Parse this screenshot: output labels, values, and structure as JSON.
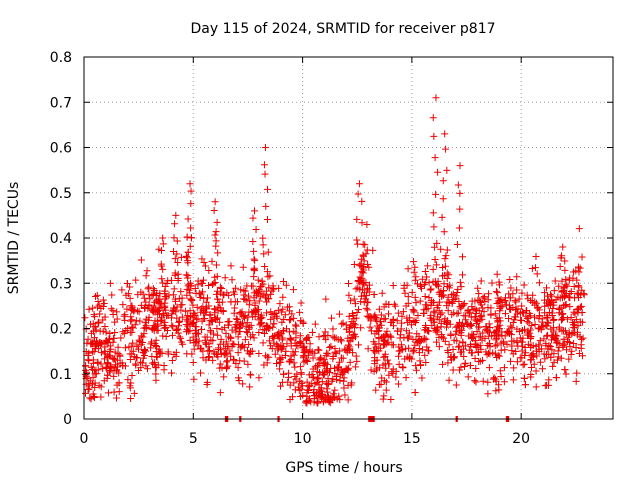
{
  "chart_data": {
    "type": "scatter",
    "title": "Day 115 of 2024, SRMTID for receiver p817",
    "xlabel": "GPS time / hours",
    "ylabel": "SRMTID / TECUs",
    "xlim": [
      0,
      24.2
    ],
    "ylim": [
      0,
      0.8
    ],
    "x_ticks": [
      0,
      5,
      10,
      15,
      20
    ],
    "y_ticks": [
      0,
      0.1,
      0.2,
      0.3,
      0.4,
      0.5,
      0.6,
      0.7,
      0.8
    ],
    "grid": true,
    "marker": "+",
    "color": "#ee0000",
    "trend": [
      {
        "x": 0.0,
        "y": 0.13
      },
      {
        "x": 0.5,
        "y": 0.15
      },
      {
        "x": 1.0,
        "y": 0.14
      },
      {
        "x": 1.5,
        "y": 0.16
      },
      {
        "x": 2.0,
        "y": 0.18
      },
      {
        "x": 2.5,
        "y": 0.19
      },
      {
        "x": 3.0,
        "y": 0.21
      },
      {
        "x": 3.5,
        "y": 0.2
      },
      {
        "x": 4.0,
        "y": 0.22
      },
      {
        "x": 4.5,
        "y": 0.24
      },
      {
        "x": 5.0,
        "y": 0.23
      },
      {
        "x": 5.5,
        "y": 0.21
      },
      {
        "x": 6.0,
        "y": 0.22
      },
      {
        "x": 6.5,
        "y": 0.19
      },
      {
        "x": 7.0,
        "y": 0.2
      },
      {
        "x": 7.5,
        "y": 0.21
      },
      {
        "x": 8.0,
        "y": 0.24
      },
      {
        "x": 8.5,
        "y": 0.23
      },
      {
        "x": 9.0,
        "y": 0.18
      },
      {
        "x": 9.5,
        "y": 0.15
      },
      {
        "x": 10.0,
        "y": 0.13
      },
      {
        "x": 10.5,
        "y": 0.1
      },
      {
        "x": 11.0,
        "y": 0.09
      },
      {
        "x": 11.5,
        "y": 0.1
      },
      {
        "x": 12.0,
        "y": 0.14
      },
      {
        "x": 12.5,
        "y": 0.24
      },
      {
        "x": 12.8,
        "y": 0.3
      },
      {
        "x": 13.2,
        "y": 0.2
      },
      {
        "x": 13.5,
        "y": 0.17
      },
      {
        "x": 14.0,
        "y": 0.16
      },
      {
        "x": 14.5,
        "y": 0.19
      },
      {
        "x": 15.0,
        "y": 0.21
      },
      {
        "x": 15.5,
        "y": 0.22
      },
      {
        "x": 16.0,
        "y": 0.26
      },
      {
        "x": 16.5,
        "y": 0.24
      },
      {
        "x": 17.0,
        "y": 0.2
      },
      {
        "x": 17.5,
        "y": 0.19
      },
      {
        "x": 18.0,
        "y": 0.2
      },
      {
        "x": 18.5,
        "y": 0.19
      },
      {
        "x": 19.0,
        "y": 0.17
      },
      {
        "x": 19.5,
        "y": 0.2
      },
      {
        "x": 20.0,
        "y": 0.21
      },
      {
        "x": 20.5,
        "y": 0.19
      },
      {
        "x": 21.0,
        "y": 0.18
      },
      {
        "x": 21.5,
        "y": 0.2
      },
      {
        "x": 22.0,
        "y": 0.22
      },
      {
        "x": 22.5,
        "y": 0.24
      },
      {
        "x": 22.9,
        "y": 0.22
      }
    ],
    "spread": 0.06,
    "points_count": 2200,
    "peaks": [
      {
        "x": 4.85,
        "y": 0.52
      },
      {
        "x": 6.0,
        "y": 0.48
      },
      {
        "x": 7.8,
        "y": 0.46
      },
      {
        "x": 8.3,
        "y": 0.6
      },
      {
        "x": 12.6,
        "y": 0.52
      },
      {
        "x": 16.1,
        "y": 0.71
      },
      {
        "x": 16.5,
        "y": 0.63
      },
      {
        "x": 17.2,
        "y": 0.56
      },
      {
        "x": 21.9,
        "y": 0.38
      },
      {
        "x": 3.6,
        "y": 0.4
      },
      {
        "x": 4.2,
        "y": 0.45
      },
      {
        "x": 18.9,
        "y": 0.32
      }
    ],
    "baseline_markers": [
      {
        "x0": 6.45,
        "x1": 6.6
      },
      {
        "x0": 7.1,
        "x1": 7.2
      },
      {
        "x0": 8.85,
        "x1": 8.95
      },
      {
        "x0": 13.0,
        "x1": 13.3
      },
      {
        "x0": 17.0,
        "x1": 17.1
      },
      {
        "x0": 19.3,
        "x1": 19.45
      }
    ]
  }
}
